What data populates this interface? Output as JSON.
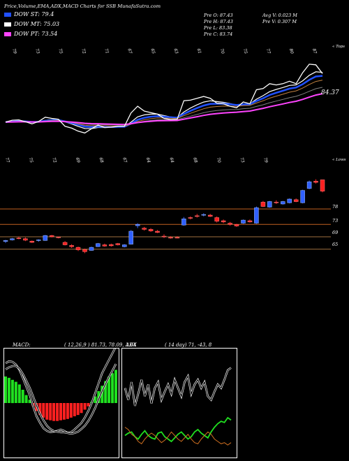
{
  "header": {
    "title": "Price,Volume,EMA,ADX,MACD Charts for SSB MunafaSutra.com",
    "legend": [
      {
        "label": "DOW ST: 79.4",
        "color": "#2050ff"
      },
      {
        "label": "DOW MT: 75.03",
        "color": "#ffffff"
      },
      {
        "label": "DOW PT: 73.54",
        "color": "#ff44ff"
      }
    ],
    "stats_left": [
      "Pre  O: 87.43",
      "Pre  H: 87.43",
      "Pre  L: 83.38",
      "Pre  C: 83.74"
    ],
    "stats_right": [
      "Avg V: 0.023 M",
      "Pre  V: 0.307 M"
    ]
  },
  "ema_panel": {
    "top_label": "« Tops",
    "bottom_label": "« Lows",
    "price_label": "84.37",
    "top_ticks": [
      "79",
      "73",
      "75",
      "72",
      "71",
      "67",
      "65",
      "63",
      "61",
      "70",
      "75",
      "77",
      "80",
      "87"
    ],
    "bottom_ticks": [
      "77",
      "75",
      "72",
      "69",
      "68",
      "67",
      "64",
      "64",
      "68",
      "70",
      "73",
      "79"
    ]
  },
  "candle_panel": {
    "y_labels": [
      "78",
      "73",
      "69",
      "65"
    ],
    "levels": [
      78,
      73,
      69,
      65
    ]
  },
  "macd": {
    "label": "MACD:",
    "values": "( 12,26,9 ) 81.73, 78.09, 3.64",
    "histogram": [
      0.4,
      0.38,
      0.35,
      0.32,
      0.28,
      0.2,
      0.12,
      0.05,
      -0.05,
      -0.12,
      -0.18,
      -0.22,
      -0.25,
      -0.26,
      -0.27,
      -0.27,
      -0.26,
      -0.25,
      -0.24,
      -0.22,
      -0.2,
      -0.18,
      -0.15,
      -0.1,
      -0.05,
      0.02,
      0.1,
      0.18,
      0.26,
      0.33,
      0.4,
      0.45,
      0.5
    ],
    "macd_line": [
      0.6,
      0.63,
      0.62,
      0.58,
      0.5,
      0.38,
      0.25,
      0.12,
      -0.05,
      -0.2,
      -0.3,
      -0.38,
      -0.42,
      -0.44,
      -0.43,
      -0.42,
      -0.4,
      -0.42,
      -0.45,
      -0.44,
      -0.4,
      -0.35,
      -0.3,
      -0.22,
      -0.12,
      0.0,
      0.15,
      0.3,
      0.45,
      0.55,
      0.65,
      0.75,
      0.85
    ],
    "signal_line": [
      0.55,
      0.58,
      0.6,
      0.6,
      0.56,
      0.48,
      0.38,
      0.27,
      0.14,
      0.0,
      -0.12,
      -0.22,
      -0.3,
      -0.35,
      -0.38,
      -0.39,
      -0.4,
      -0.4,
      -0.41,
      -0.42,
      -0.41,
      -0.39,
      -0.35,
      -0.3,
      -0.23,
      -0.14,
      -0.03,
      0.1,
      0.22,
      0.33,
      0.43,
      0.53,
      0.63
    ]
  },
  "adx": {
    "label": "ADX",
    "values": "( 14 day) 71, -43, 8",
    "adx_line": [
      55,
      45,
      60,
      40,
      50,
      62,
      48,
      58,
      42,
      55,
      60,
      45,
      52,
      58,
      50,
      62,
      55,
      48,
      60,
      65,
      50,
      58,
      62,
      55,
      60,
      48,
      45,
      52,
      58,
      55,
      62,
      70,
      72
    ],
    "plus_di": [
      15,
      17,
      18,
      14,
      12,
      16,
      19,
      15,
      13,
      12,
      17,
      18,
      14,
      12,
      10,
      13,
      16,
      18,
      15,
      12,
      14,
      18,
      20,
      17,
      15,
      13,
      18,
      22,
      25,
      27,
      26,
      30,
      28
    ],
    "minus_di": [
      22,
      20,
      16,
      14,
      10,
      8,
      12,
      15,
      17,
      15,
      12,
      9,
      11,
      14,
      18,
      15,
      12,
      10,
      13,
      16,
      12,
      9,
      8,
      12,
      15,
      18,
      16,
      12,
      10,
      8,
      9,
      7,
      9
    ]
  },
  "chart_data": {
    "type": "candlestick",
    "title": "Price,Volume,EMA,ADX,MACD Charts for SSB",
    "ema_values": {
      "DOW ST": 79.4,
      "DOW MT": 75.03,
      "DOW PT": 73.54
    },
    "last_candle": {
      "open": 87.43,
      "high": 87.43,
      "low": 83.38,
      "close": 83.74
    },
    "volume": {
      "avg": "0.023 M",
      "prev": "0.307 M"
    },
    "levels": [
      78,
      73,
      69,
      65
    ],
    "candles": [
      {
        "o": 67.5,
        "h": 68.0,
        "l": 67.0,
        "c": 67.8
      },
      {
        "o": 68.0,
        "h": 68.6,
        "l": 67.8,
        "c": 68.4
      },
      {
        "o": 68.6,
        "h": 69.0,
        "l": 68.2,
        "c": 68.5
      },
      {
        "o": 68.4,
        "h": 68.8,
        "l": 67.6,
        "c": 67.9
      },
      {
        "o": 67.6,
        "h": 67.8,
        "l": 67.0,
        "c": 67.2
      },
      {
        "o": 67.8,
        "h": 68.2,
        "l": 67.4,
        "c": 68.0
      },
      {
        "o": 67.8,
        "h": 69.6,
        "l": 67.7,
        "c": 69.4
      },
      {
        "o": 69.4,
        "h": 69.6,
        "l": 68.8,
        "c": 69.0
      },
      {
        "o": 68.9,
        "h": 69.1,
        "l": 68.5,
        "c": 68.7
      },
      {
        "o": 67.2,
        "h": 67.6,
        "l": 66.2,
        "c": 66.4
      },
      {
        "o": 66.2,
        "h": 66.6,
        "l": 65.4,
        "c": 65.8
      },
      {
        "o": 65.6,
        "h": 65.8,
        "l": 64.4,
        "c": 64.8
      },
      {
        "o": 64.9,
        "h": 65.2,
        "l": 63.7,
        "c": 64.2
      },
      {
        "o": 64.6,
        "h": 65.8,
        "l": 64.5,
        "c": 65.6
      },
      {
        "o": 65.8,
        "h": 67.0,
        "l": 65.7,
        "c": 66.8
      },
      {
        "o": 66.4,
        "h": 66.8,
        "l": 65.8,
        "c": 66.0
      },
      {
        "o": 66.5,
        "h": 66.8,
        "l": 65.8,
        "c": 66.1
      },
      {
        "o": 66.8,
        "h": 67.0,
        "l": 66.2,
        "c": 66.4
      },
      {
        "o": 65.8,
        "h": 66.6,
        "l": 65.6,
        "c": 66.4
      },
      {
        "o": 66.6,
        "h": 71.2,
        "l": 66.5,
        "c": 70.8
      },
      {
        "o": 72.6,
        "h": 73.4,
        "l": 71.8,
        "c": 73.0
      },
      {
        "o": 71.8,
        "h": 72.2,
        "l": 71.0,
        "c": 71.4
      },
      {
        "o": 71.4,
        "h": 71.8,
        "l": 70.6,
        "c": 70.9
      },
      {
        "o": 70.8,
        "h": 71.2,
        "l": 70.2,
        "c": 70.4
      },
      {
        "o": 69.2,
        "h": 69.8,
        "l": 68.6,
        "c": 69.0
      },
      {
        "o": 68.8,
        "h": 69.2,
        "l": 68.4,
        "c": 68.6
      },
      {
        "o": 68.8,
        "h": 69.2,
        "l": 68.5,
        "c": 68.7
      },
      {
        "o": 72.8,
        "h": 75.4,
        "l": 72.6,
        "c": 74.8
      },
      {
        "o": 75.2,
        "h": 75.6,
        "l": 74.6,
        "c": 75.0
      },
      {
        "o": 75.8,
        "h": 76.4,
        "l": 75.2,
        "c": 75.6
      },
      {
        "o": 76.0,
        "h": 76.6,
        "l": 75.6,
        "c": 76.2
      },
      {
        "o": 76.0,
        "h": 76.4,
        "l": 75.4,
        "c": 75.6
      },
      {
        "o": 75.2,
        "h": 75.6,
        "l": 73.6,
        "c": 74.0
      },
      {
        "o": 74.2,
        "h": 74.6,
        "l": 73.4,
        "c": 73.8
      },
      {
        "o": 73.4,
        "h": 73.8,
        "l": 72.6,
        "c": 73.0
      },
      {
        "o": 73.0,
        "h": 73.2,
        "l": 72.2,
        "c": 72.5
      },
      {
        "o": 73.4,
        "h": 74.6,
        "l": 73.2,
        "c": 74.4
      },
      {
        "o": 74.2,
        "h": 74.6,
        "l": 73.6,
        "c": 73.8
      },
      {
        "o": 73.4,
        "h": 78.8,
        "l": 73.2,
        "c": 78.4
      },
      {
        "o": 80.2,
        "h": 80.6,
        "l": 78.6,
        "c": 78.8
      },
      {
        "o": 78.6,
        "h": 80.6,
        "l": 78.4,
        "c": 80.4
      },
      {
        "o": 80.2,
        "h": 80.8,
        "l": 79.6,
        "c": 80.0
      },
      {
        "o": 79.6,
        "h": 80.6,
        "l": 79.4,
        "c": 80.4
      },
      {
        "o": 80.0,
        "h": 81.4,
        "l": 79.8,
        "c": 81.2
      },
      {
        "o": 81.0,
        "h": 81.4,
        "l": 80.2,
        "c": 80.4
      },
      {
        "o": 80.0,
        "h": 84.2,
        "l": 79.8,
        "c": 84.0
      },
      {
        "o": 84.6,
        "h": 87.2,
        "l": 84.4,
        "c": 86.8
      },
      {
        "o": 87.0,
        "h": 87.6,
        "l": 86.2,
        "c": 86.6
      },
      {
        "o": 87.43,
        "h": 87.43,
        "l": 83.38,
        "c": 83.74
      }
    ]
  }
}
